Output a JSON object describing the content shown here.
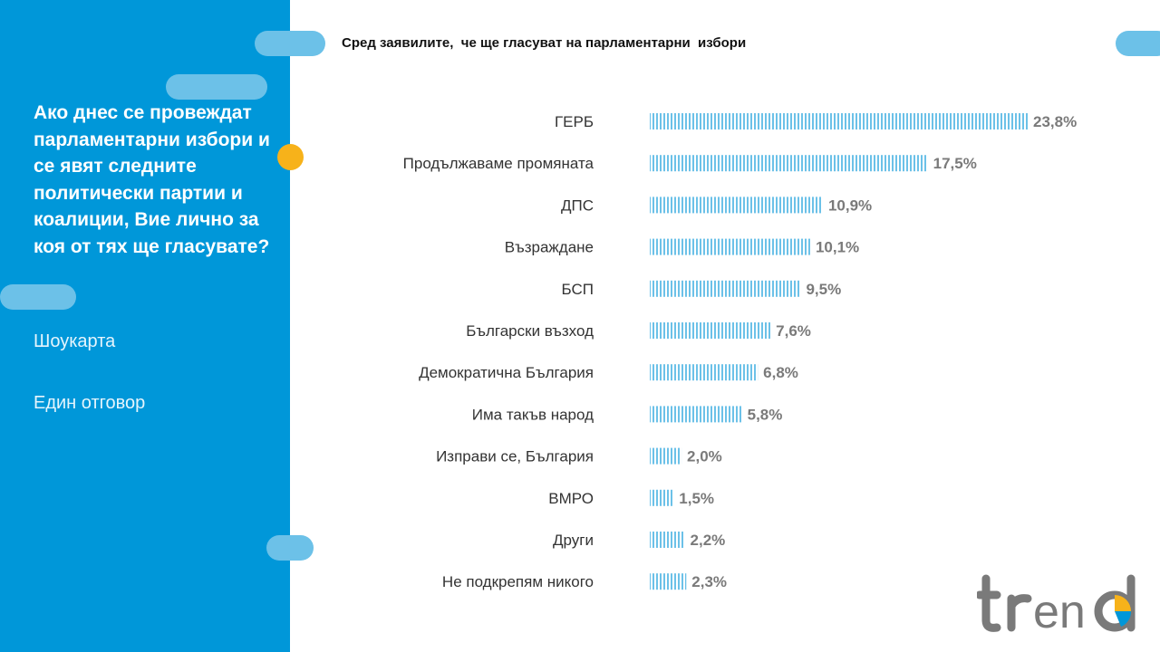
{
  "panel": {
    "question": "Ако днес се провеждат парламентарни избори и се явят следните политически партии и коалиции, Вие лично за коя от тях ще гласувате?",
    "note1": "Шоукарта",
    "note2": "Един отговор"
  },
  "subtitle": "Сред заявилите,  че ще гласуват на парламентарни  избори",
  "colors": {
    "panel": "#0097d9",
    "pill": "#6cc1e8",
    "accent_dot": "#f7b21a",
    "bar": "#6cc1e8",
    "logo": "#7a7a7a"
  },
  "logo": {
    "text": "trend"
  },
  "chart_data": {
    "type": "bar",
    "orientation": "horizontal",
    "title": "Сред заявилите,  че ще гласуват на парламентарни  избори",
    "categories": [
      "ГЕРБ",
      "Продължаваме промяната",
      "ДПС",
      "Възраждане",
      "БСП",
      "Български възход",
      "Демократична България",
      "Има такъв народ",
      "Изправи се, България",
      "ВМРО",
      "Други",
      "Не подкрепям никого"
    ],
    "values": [
      23.8,
      17.5,
      10.9,
      10.1,
      9.5,
      7.6,
      6.8,
      5.8,
      2.0,
      1.5,
      2.2,
      2.3
    ],
    "value_labels": [
      "23,8%",
      "17,5%",
      "10,9%",
      "10,1%",
      "9,5%",
      "7,6%",
      "6,8%",
      "5,8%",
      "2,0%",
      "1,5%",
      "2,2%",
      "2,3%"
    ],
    "xlim": [
      0,
      23.8
    ],
    "grid": false,
    "legend": "none"
  }
}
